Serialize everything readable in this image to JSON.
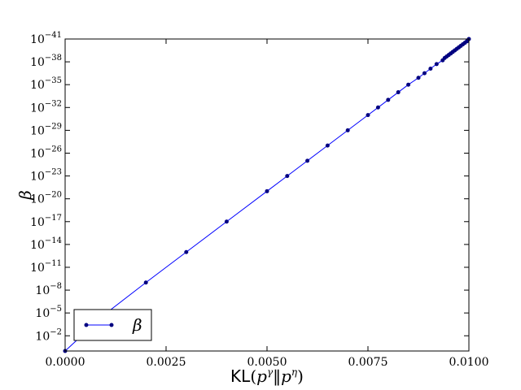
{
  "chart_data": {
    "type": "line",
    "title": "",
    "xlabel": "KL(p^γ‖p^η)",
    "ylabel": "β",
    "xlim": [
      0,
      0.01
    ],
    "ylim_exponent": [
      -41,
      0
    ],
    "yscale": "log",
    "grid": false,
    "legend": {
      "placement": "bottom-left",
      "entries": [
        "β"
      ]
    },
    "x_tick_labels": [
      "0.0000",
      "0.0025",
      "0.0050",
      "0.0075",
      "0.0100"
    ],
    "x_ticks": [
      0,
      0.0025,
      0.005,
      0.0075,
      0.01
    ],
    "y_tick_exponents": [
      -2,
      -5,
      -8,
      -11,
      -14,
      -17,
      -20,
      -23,
      -26,
      -29,
      -32,
      -35,
      -38,
      -41
    ],
    "series": [
      {
        "name": "β",
        "color": "#0000ff",
        "marker_color": "#000080",
        "x": [
          0.0,
          0.001,
          0.002,
          0.003,
          0.004,
          0.005,
          0.0055,
          0.006,
          0.0065,
          0.007,
          0.0075,
          0.00775,
          0.008,
          0.00825,
          0.0085,
          0.00875,
          0.0089,
          0.00905,
          0.0092,
          0.00935,
          0.0094,
          0.00945,
          0.0095,
          0.00955,
          0.0096,
          0.00965,
          0.0097,
          0.00975,
          0.0098,
          0.00985,
          0.0099,
          0.00995,
          0.01
        ],
        "log10_y": [
          0.0,
          -4.9,
          -9.0,
          -13.0,
          -17.0,
          -21.0,
          -23.0,
          -25.0,
          -27.0,
          -29.0,
          -31.0,
          -32.0,
          -33.0,
          -34.0,
          -35.0,
          -35.9,
          -36.5,
          -37.1,
          -37.7,
          -38.2,
          -38.5,
          -38.7,
          -38.9,
          -39.1,
          -39.3,
          -39.5,
          -39.7,
          -39.9,
          -40.1,
          -40.3,
          -40.5,
          -40.7,
          -41.0
        ]
      }
    ]
  }
}
